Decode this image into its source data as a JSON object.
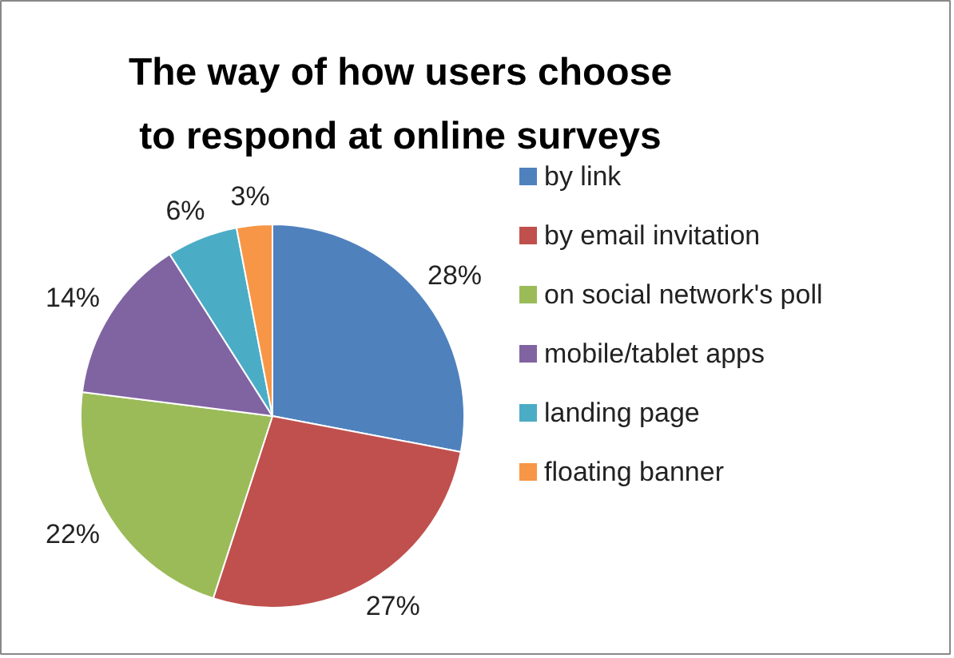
{
  "chart_data": {
    "type": "pie",
    "title": "The way of how users choose to respond at online surveys",
    "categories": [
      "by link",
      "by email invitation",
      "on social network's poll",
      "mobile/tablet apps",
      "landing page",
      "floating banner"
    ],
    "values": [
      28,
      27,
      22,
      14,
      6,
      3
    ],
    "colors": [
      "#4f81bd",
      "#c0504d",
      "#9bbb59",
      "#8064a2",
      "#4bacc6",
      "#f79646"
    ],
    "value_labels": [
      "28%",
      "27%",
      "22%",
      "14%",
      "6%",
      "3%"
    ],
    "legend": "right"
  }
}
